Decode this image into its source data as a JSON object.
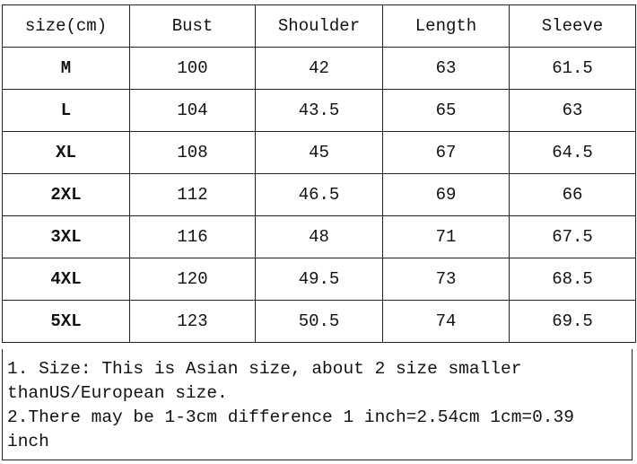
{
  "table": {
    "headers": [
      "size(cm)",
      "Bust",
      "Shoulder",
      "Length",
      "Sleeve"
    ],
    "rows": [
      [
        "M",
        "100",
        "42",
        "63",
        "61.5"
      ],
      [
        "L",
        "104",
        "43.5",
        "65",
        "63"
      ],
      [
        "XL",
        "108",
        "45",
        "67",
        "64.5"
      ],
      [
        "2XL",
        "112",
        "46.5",
        "69",
        "66"
      ],
      [
        "3XL",
        "116",
        "48",
        "71",
        "67.5"
      ],
      [
        "4XL",
        "120",
        "49.5",
        "73",
        "68.5"
      ],
      [
        "5XL",
        "123",
        "50.5",
        "74",
        "69.5"
      ]
    ]
  },
  "notes": [
    "1. Size: This is Asian size, about 2 size smaller thanUS/European size.",
    "2.There may be 1-3cm difference 1 inch=2.54cm 1cm=0.39 inch"
  ]
}
